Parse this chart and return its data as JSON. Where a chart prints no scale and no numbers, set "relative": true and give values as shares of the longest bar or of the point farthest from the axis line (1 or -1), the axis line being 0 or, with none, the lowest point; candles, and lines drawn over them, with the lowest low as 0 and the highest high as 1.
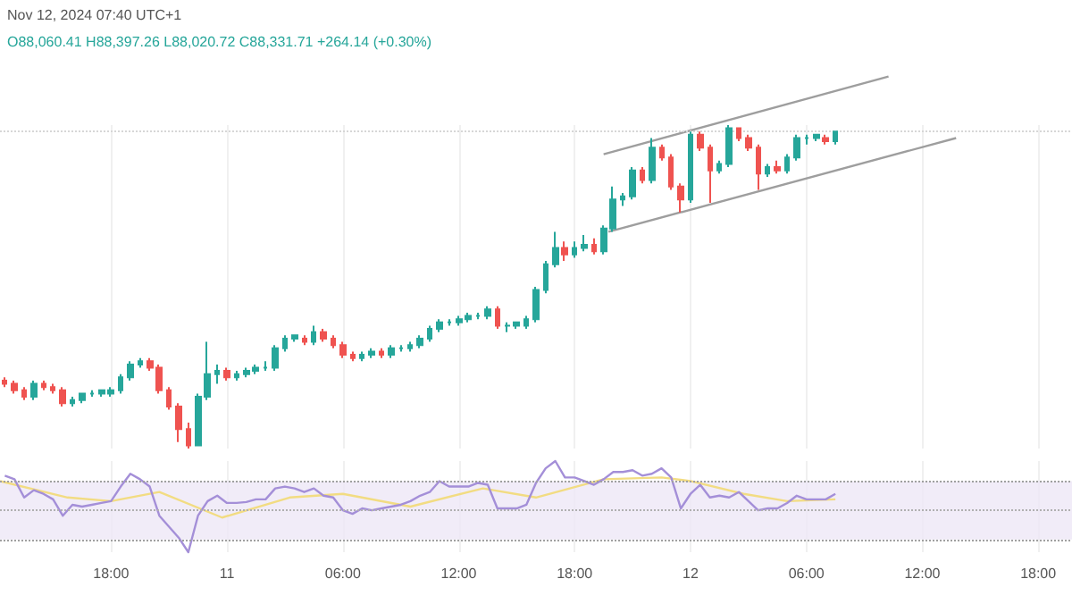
{
  "chart_data": [
    {
      "type": "candlestick",
      "relative": true,
      "tick_labels": false,
      "grid": "x",
      "annotations": [
        "Nov 12, 2024 07:40 UTC+1",
        "O88,060.41 H88,397.26 L88,020.72 C88,331.71 +264.14 (+0.30%)"
      ],
      "colors": [
        "#ef5350",
        "#ef5350",
        "#ef5350",
        "#26a69a",
        "#ef5350",
        "#ef5350",
        "#ef5350",
        "#26a69a",
        "#26a69a",
        "#26a69a",
        "#26a69a",
        "#26a69a",
        "#26a69a",
        "#26a69a",
        "#26a69a",
        "#ef5350",
        "#ef5350",
        "#ef5350",
        "#ef5350",
        "#ef5350",
        "#26a69a",
        "#26a69a",
        "#26a69a",
        "#ef5350",
        "#26a69a",
        "#26a69a",
        "#26a69a",
        "#26a69a",
        "#26a69a",
        "#26a69a",
        "#26a69a",
        "#ef5350",
        "#26a69a",
        "#ef5350",
        "#ef5350",
        "#ef5350",
        "#ef5350",
        "#26a69a",
        "#26a69a",
        "#ef5350",
        "#26a69a",
        "#26a69a",
        "#26a69a",
        "#26a69a",
        "#26a69a",
        "#26a69a",
        "#26a69a",
        "#26a69a",
        "#26a69a",
        "#26a69a",
        "#26a69a",
        "#ef5350",
        "#26a69a",
        "#26a69a",
        "#26a69a",
        "#26a69a",
        "#26a69a",
        "#26a69a",
        "#ef5350",
        "#26a69a",
        "#26a69a",
        "#ef5350",
        "#26a69a",
        "#26a69a",
        "#26a69a",
        "#26a69a",
        "#ef5350",
        "#26a69a",
        "#ef5350",
        "#ef5350",
        "#ef5350",
        "#26a69a",
        "#ef5350",
        "#ef5350",
        "#26a69a",
        "#26a69a",
        "#ef5350",
        "#ef5350",
        "#ef5350",
        "#26a69a",
        "#ef5350",
        "#26a69a",
        "#26a69a",
        "#26a69a",
        "#26a69a",
        "#ef5350",
        "#26a69a"
      ],
      "xlim": [
        "2024-11-10T12:15",
        "2024-11-12T19:45"
      ],
      "xticks": [
        {
          "value": "2024-11-10T18:00",
          "label": null
        },
        {
          "value": "2024-11-11T00:00",
          "label": null
        },
        {
          "value": "2024-11-11T06:00",
          "label": null
        },
        {
          "value": "2024-11-11T12:00",
          "label": null
        },
        {
          "value": "2024-11-11T18:00",
          "label": null
        },
        {
          "value": "2024-11-12T00:00",
          "label": null
        },
        {
          "value": "2024-11-12T06:00",
          "label": null
        },
        {
          "value": "2024-11-12T12:00",
          "label": null
        },
        {
          "value": "2024-11-12T18:00",
          "label": null
        }
      ],
      "x": [
        "2024-11-10T12:30",
        "2024-11-10T13:00",
        "2024-11-10T13:30",
        "2024-11-10T14:00",
        "2024-11-10T14:30",
        "2024-11-10T15:00",
        "2024-11-10T15:30",
        "2024-11-10T16:00",
        "2024-11-10T16:30",
        "2024-11-10T17:00",
        "2024-11-10T17:30",
        "2024-11-10T18:00",
        "2024-11-10T18:30",
        "2024-11-10T19:00",
        "2024-11-10T19:30",
        "2024-11-10T20:00",
        "2024-11-10T20:30",
        "2024-11-10T21:00",
        "2024-11-10T21:30",
        "2024-11-10T22:00",
        "2024-11-10T22:30",
        "2024-11-10T23:00",
        "2024-11-10T23:30",
        "2024-11-11T00:00",
        "2024-11-11T00:30",
        "2024-11-11T01:00",
        "2024-11-11T01:30",
        "2024-11-11T02:00",
        "2024-11-11T02:30",
        "2024-11-11T03:00",
        "2024-11-11T03:30",
        "2024-11-11T04:00",
        "2024-11-11T04:30",
        "2024-11-11T05:00",
        "2024-11-11T05:30",
        "2024-11-11T06:00",
        "2024-11-11T06:30",
        "2024-11-11T07:00",
        "2024-11-11T07:30",
        "2024-11-11T08:00",
        "2024-11-11T08:30",
        "2024-11-11T09:00",
        "2024-11-11T09:30",
        "2024-11-11T10:00",
        "2024-11-11T10:30",
        "2024-11-11T11:00",
        "2024-11-11T11:30",
        "2024-11-11T12:00",
        "2024-11-11T12:30",
        "2024-11-11T13:00",
        "2024-11-11T13:30",
        "2024-11-11T14:00",
        "2024-11-11T14:30",
        "2024-11-11T15:00",
        "2024-11-11T15:30",
        "2024-11-11T16:00",
        "2024-11-11T16:30",
        "2024-11-11T17:00",
        "2024-11-11T17:30",
        "2024-11-11T18:00",
        "2024-11-11T18:30",
        "2024-11-11T19:00",
        "2024-11-11T19:30",
        "2024-11-11T20:00",
        "2024-11-11T20:30",
        "2024-11-11T21:00",
        "2024-11-11T21:30",
        "2024-11-11T22:00",
        "2024-11-11T22:30",
        "2024-11-11T23:00",
        "2024-11-11T23:30",
        "2024-11-12T00:00",
        "2024-11-12T00:30",
        "2024-11-12T01:00",
        "2024-11-12T01:30",
        "2024-11-12T02:00",
        "2024-11-12T02:30",
        "2024-11-12T03:00",
        "2024-11-12T03:30",
        "2024-11-12T04:00",
        "2024-11-12T04:30",
        "2024-11-12T05:00",
        "2024-11-12T05:30",
        "2024-11-12T06:00",
        "2024-11-12T06:30",
        "2024-11-12T07:00",
        "2024-11-12T07:30"
      ],
      "ohlc": [
        [
          0.21,
          0.22,
          0.19,
          0.2
        ],
        [
          0.2,
          0.21,
          0.17,
          0.18
        ],
        [
          0.18,
          0.19,
          0.15,
          0.16
        ],
        [
          0.16,
          0.21,
          0.15,
          0.2
        ],
        [
          0.2,
          0.21,
          0.18,
          0.19
        ],
        [
          0.19,
          0.2,
          0.17,
          0.18
        ],
        [
          0.18,
          0.19,
          0.13,
          0.14
        ],
        [
          0.14,
          0.16,
          0.13,
          0.15
        ],
        [
          0.15,
          0.17,
          0.14,
          0.17
        ],
        [
          0.17,
          0.18,
          0.16,
          0.17
        ],
        [
          0.17,
          0.18,
          0.16,
          0.18
        ],
        [
          0.17,
          0.19,
          0.16,
          0.18
        ],
        [
          0.18,
          0.23,
          0.17,
          0.22
        ],
        [
          0.22,
          0.27,
          0.21,
          0.26
        ],
        [
          0.26,
          0.28,
          0.25,
          0.27
        ],
        [
          0.27,
          0.28,
          0.24,
          0.25
        ],
        [
          0.25,
          0.26,
          0.17,
          0.18
        ],
        [
          0.18,
          0.19,
          0.12,
          0.13
        ],
        [
          0.13,
          0.14,
          0.02,
          0.06
        ],
        [
          0.06,
          0.08,
          0,
          0.01
        ],
        [
          0.01,
          0.17,
          0.01,
          0.16
        ],
        [
          0.16,
          0.33,
          0.15,
          0.23
        ],
        [
          0.23,
          0.26,
          0.2,
          0.24
        ],
        [
          0.24,
          0.25,
          0.21,
          0.22
        ],
        [
          0.22,
          0.24,
          0.21,
          0.23
        ],
        [
          0.23,
          0.25,
          0.22,
          0.24
        ],
        [
          0.24,
          0.26,
          0.23,
          0.25
        ],
        [
          0.25,
          0.27,
          0.24,
          0.25
        ],
        [
          0.25,
          0.32,
          0.24,
          0.31
        ],
        [
          0.31,
          0.35,
          0.3,
          0.34
        ],
        [
          0.34,
          0.35,
          0.33,
          0.35
        ],
        [
          0.34,
          0.35,
          0.32,
          0.33
        ],
        [
          0.33,
          0.38,
          0.32,
          0.36
        ],
        [
          0.36,
          0.37,
          0.33,
          0.34
        ],
        [
          0.34,
          0.35,
          0.31,
          0.32
        ],
        [
          0.32,
          0.33,
          0.28,
          0.29
        ],
        [
          0.29,
          0.3,
          0.27,
          0.28
        ],
        [
          0.28,
          0.3,
          0.27,
          0.29
        ],
        [
          0.29,
          0.31,
          0.28,
          0.3
        ],
        [
          0.3,
          0.31,
          0.28,
          0.29
        ],
        [
          0.29,
          0.32,
          0.28,
          0.31
        ],
        [
          0.31,
          0.32,
          0.3,
          0.31
        ],
        [
          0.31,
          0.33,
          0.3,
          0.32
        ],
        [
          0.32,
          0.35,
          0.31,
          0.34
        ],
        [
          0.34,
          0.38,
          0.33,
          0.37
        ],
        [
          0.37,
          0.4,
          0.36,
          0.39
        ],
        [
          0.39,
          0.4,
          0.38,
          0.39
        ],
        [
          0.39,
          0.41,
          0.38,
          0.4
        ],
        [
          0.4,
          0.42,
          0.39,
          0.41
        ],
        [
          0.41,
          0.42,
          0.4,
          0.41
        ],
        [
          0.41,
          0.44,
          0.4,
          0.43
        ],
        [
          0.43,
          0.44,
          0.37,
          0.38
        ],
        [
          0.38,
          0.39,
          0.36,
          0.38
        ],
        [
          0.38,
          0.39,
          0.37,
          0.39
        ],
        [
          0.38,
          0.41,
          0.37,
          0.4
        ],
        [
          0.4,
          0.5,
          0.39,
          0.49
        ],
        [
          0.49,
          0.58,
          0.48,
          0.57
        ],
        [
          0.57,
          0.67,
          0.56,
          0.62
        ],
        [
          0.62,
          0.64,
          0.58,
          0.6
        ],
        [
          0.6,
          0.64,
          0.59,
          0.62
        ],
        [
          0.62,
          0.66,
          0.61,
          0.63
        ],
        [
          0.63,
          0.65,
          0.6,
          0.61
        ],
        [
          0.61,
          0.69,
          0.6,
          0.68
        ],
        [
          0.68,
          0.81,
          0.67,
          0.77
        ],
        [
          0.77,
          0.79,
          0.75,
          0.78
        ],
        [
          0.78,
          0.87,
          0.77,
          0.86
        ],
        [
          0.86,
          0.87,
          0.82,
          0.83
        ],
        [
          0.83,
          0.96,
          0.82,
          0.93
        ],
        [
          0.93,
          0.94,
          0.89,
          0.9
        ],
        [
          0.9,
          0.91,
          0.8,
          0.81
        ],
        [
          0.81,
          0.82,
          0.73,
          0.77
        ],
        [
          0.77,
          0.98,
          0.76,
          0.97
        ],
        [
          0.97,
          0.98,
          0.92,
          0.93
        ],
        [
          0.93,
          0.94,
          0.76,
          0.86
        ],
        [
          0.86,
          0.89,
          0.85,
          0.88
        ],
        [
          0.88,
          1,
          0.87,
          0.99
        ],
        [
          0.99,
          0.99,
          0.95,
          0.96
        ],
        [
          0.96,
          0.97,
          0.92,
          0.93
        ],
        [
          0.93,
          0.94,
          0.8,
          0.85
        ],
        [
          0.85,
          0.88,
          0.84,
          0.87
        ],
        [
          0.87,
          0.89,
          0.85,
          0.86
        ],
        [
          0.86,
          0.91,
          0.85,
          0.9
        ],
        [
          0.9,
          0.97,
          0.89,
          0.96
        ],
        [
          0.96,
          0.97,
          0.94,
          0.96
        ],
        [
          0.96,
          0.97,
          0.95,
          0.97
        ],
        [
          0.96,
          0.97,
          0.94,
          0.95
        ],
        [
          0.95,
          0.98,
          0.94,
          0.98
        ]
      ],
      "series": [
        {
          "type": "line",
          "color": "#9e9e9e",
          "x": [
            "2024-11-11T19:30",
            "2024-11-12T10:15"
          ],
          "values": [
            0.91,
            1.15
          ]
        },
        {
          "type": "line",
          "color": "#9e9e9e",
          "x": [
            "2024-11-11T19:45",
            "2024-11-12T13:45"
          ],
          "values": [
            0.67,
            0.96
          ]
        }
      ],
      "ref_lines": [
        {
          "axis": "y",
          "value": 0.98,
          "color": "#d6d6d6",
          "line_style": "dotted"
        }
      ]
    },
    {
      "type": "line",
      "relative": true,
      "tick_labels": "x",
      "grid": "x",
      "marker": "none",
      "xlim": [
        "2024-11-10T12:15",
        "2024-11-12T19:45"
      ],
      "xticks": [
        {
          "value": "2024-11-10T18:00",
          "label": "18:00"
        },
        {
          "value": "2024-11-11T00:00",
          "label": "11"
        },
        {
          "value": "2024-11-11T06:00",
          "label": "06:00"
        },
        {
          "value": "2024-11-11T12:00",
          "label": "12:00"
        },
        {
          "value": "2024-11-11T18:00",
          "label": "18:00"
        },
        {
          "value": "2024-11-12T00:00",
          "label": "12"
        },
        {
          "value": "2024-11-12T06:00",
          "label": "06:00"
        },
        {
          "value": "2024-11-12T12:00",
          "label": "12:00"
        },
        {
          "value": "2024-11-12T18:00",
          "label": "18:00"
        }
      ],
      "series": [
        {
          "color": "#f2dc82",
          "x": [
            "2024-11-10T12:15",
            "2024-11-10T15:45",
            "2024-11-10T18:00",
            "2024-11-10T20:30",
            "2024-11-10T23:45",
            "2024-11-11T03:15",
            "2024-11-11T06:00",
            "2024-11-11T09:30",
            "2024-11-11T13:15",
            "2024-11-11T16:00",
            "2024-11-11T19:30",
            "2024-11-11T22:30",
            "2024-11-12T00:00",
            "2024-11-12T02:45",
            "2024-11-12T05:00",
            "2024-11-12T07:30"
          ],
          "values": [
            0.78,
            0.6,
            0.56,
            0.66,
            0.38,
            0.6,
            0.64,
            0.5,
            0.7,
            0.6,
            0.8,
            0.82,
            0.78,
            0.64,
            0.56,
            0.58
          ]
        },
        {
          "color": "#a48fd8",
          "x": [
            "2024-11-10T12:30",
            "2024-11-10T13:00",
            "2024-11-10T13:30",
            "2024-11-10T14:00",
            "2024-11-10T14:30",
            "2024-11-10T15:00",
            "2024-11-10T15:30",
            "2024-11-10T16:00",
            "2024-11-10T16:30",
            "2024-11-10T17:00",
            "2024-11-10T17:30",
            "2024-11-10T18:00",
            "2024-11-10T18:30",
            "2024-11-10T19:00",
            "2024-11-10T19:30",
            "2024-11-10T20:00",
            "2024-11-10T20:30",
            "2024-11-10T21:00",
            "2024-11-10T21:30",
            "2024-11-10T22:00",
            "2024-11-10T22:30",
            "2024-11-10T23:00",
            "2024-11-10T23:30",
            "2024-11-11T00:00",
            "2024-11-11T00:30",
            "2024-11-11T01:00",
            "2024-11-11T01:30",
            "2024-11-11T02:00",
            "2024-11-11T02:30",
            "2024-11-11T03:00",
            "2024-11-11T03:30",
            "2024-11-11T04:00",
            "2024-11-11T04:30",
            "2024-11-11T05:00",
            "2024-11-11T05:30",
            "2024-11-11T06:00",
            "2024-11-11T06:30",
            "2024-11-11T07:00",
            "2024-11-11T07:30",
            "2024-11-11T08:00",
            "2024-11-11T08:30",
            "2024-11-11T09:00",
            "2024-11-11T09:30",
            "2024-11-11T10:00",
            "2024-11-11T10:30",
            "2024-11-11T11:00",
            "2024-11-11T11:30",
            "2024-11-11T12:00",
            "2024-11-11T12:30",
            "2024-11-11T13:00",
            "2024-11-11T13:30",
            "2024-11-11T14:00",
            "2024-11-11T14:30",
            "2024-11-11T15:00",
            "2024-11-11T15:30",
            "2024-11-11T16:00",
            "2024-11-11T16:30",
            "2024-11-11T17:00",
            "2024-11-11T17:30",
            "2024-11-11T18:00",
            "2024-11-11T18:30",
            "2024-11-11T19:00",
            "2024-11-11T19:30",
            "2024-11-11T20:00",
            "2024-11-11T20:30",
            "2024-11-11T21:00",
            "2024-11-11T21:30",
            "2024-11-11T22:00",
            "2024-11-11T22:30",
            "2024-11-11T23:00",
            "2024-11-11T23:30",
            "2024-11-12T00:00",
            "2024-11-12T00:30",
            "2024-11-12T01:00",
            "2024-11-12T01:30",
            "2024-11-12T02:00",
            "2024-11-12T02:30",
            "2024-11-12T03:00",
            "2024-11-12T03:30",
            "2024-11-12T04:00",
            "2024-11-12T04:30",
            "2024-11-12T05:00",
            "2024-11-12T05:30",
            "2024-11-12T06:00",
            "2024-11-12T06:30",
            "2024-11-12T07:00",
            "2024-11-12T07:30"
          ],
          "values": [
            0.84,
            0.8,
            0.6,
            0.68,
            0.64,
            0.58,
            0.4,
            0.52,
            0.5,
            0.52,
            0.54,
            0.56,
            0.72,
            0.86,
            0.8,
            0.72,
            0.4,
            0.28,
            0.16,
            0,
            0.4,
            0.56,
            0.62,
            0.54,
            0.54,
            0.55,
            0.58,
            0.58,
            0.7,
            0.72,
            0.7,
            0.66,
            0.7,
            0.62,
            0.6,
            0.46,
            0.42,
            0.48,
            0.46,
            0.48,
            0.5,
            0.52,
            0.56,
            0.62,
            0.66,
            0.78,
            0.72,
            0.72,
            0.72,
            0.76,
            0.74,
            0.48,
            0.48,
            0.48,
            0.52,
            0.76,
            0.92,
            1,
            0.82,
            0.82,
            0.78,
            0.74,
            0.8,
            0.88,
            0.88,
            0.9,
            0.84,
            0.86,
            0.92,
            0.82,
            0.48,
            0.64,
            0.74,
            0.6,
            0.62,
            0.6,
            0.66,
            0.56,
            0.46,
            0.48,
            0.48,
            0.54,
            0.62,
            0.58,
            0.58,
            0.58,
            0.64
          ]
        }
      ],
      "bands": [
        {
          "axis": "y",
          "from": 0.14,
          "to": 0.78,
          "color": "#ede7f6"
        }
      ],
      "ref_lines": [
        {
          "axis": "y",
          "value": 0.78,
          "color": "#a0a0a0",
          "line_style": "dotted"
        },
        {
          "axis": "y",
          "value": 0.46,
          "color": "#b0b0b0",
          "line_style": "dotted"
        },
        {
          "axis": "y",
          "value": 0.14,
          "color": "#a0a0a0",
          "line_style": "dotted"
        }
      ]
    }
  ]
}
